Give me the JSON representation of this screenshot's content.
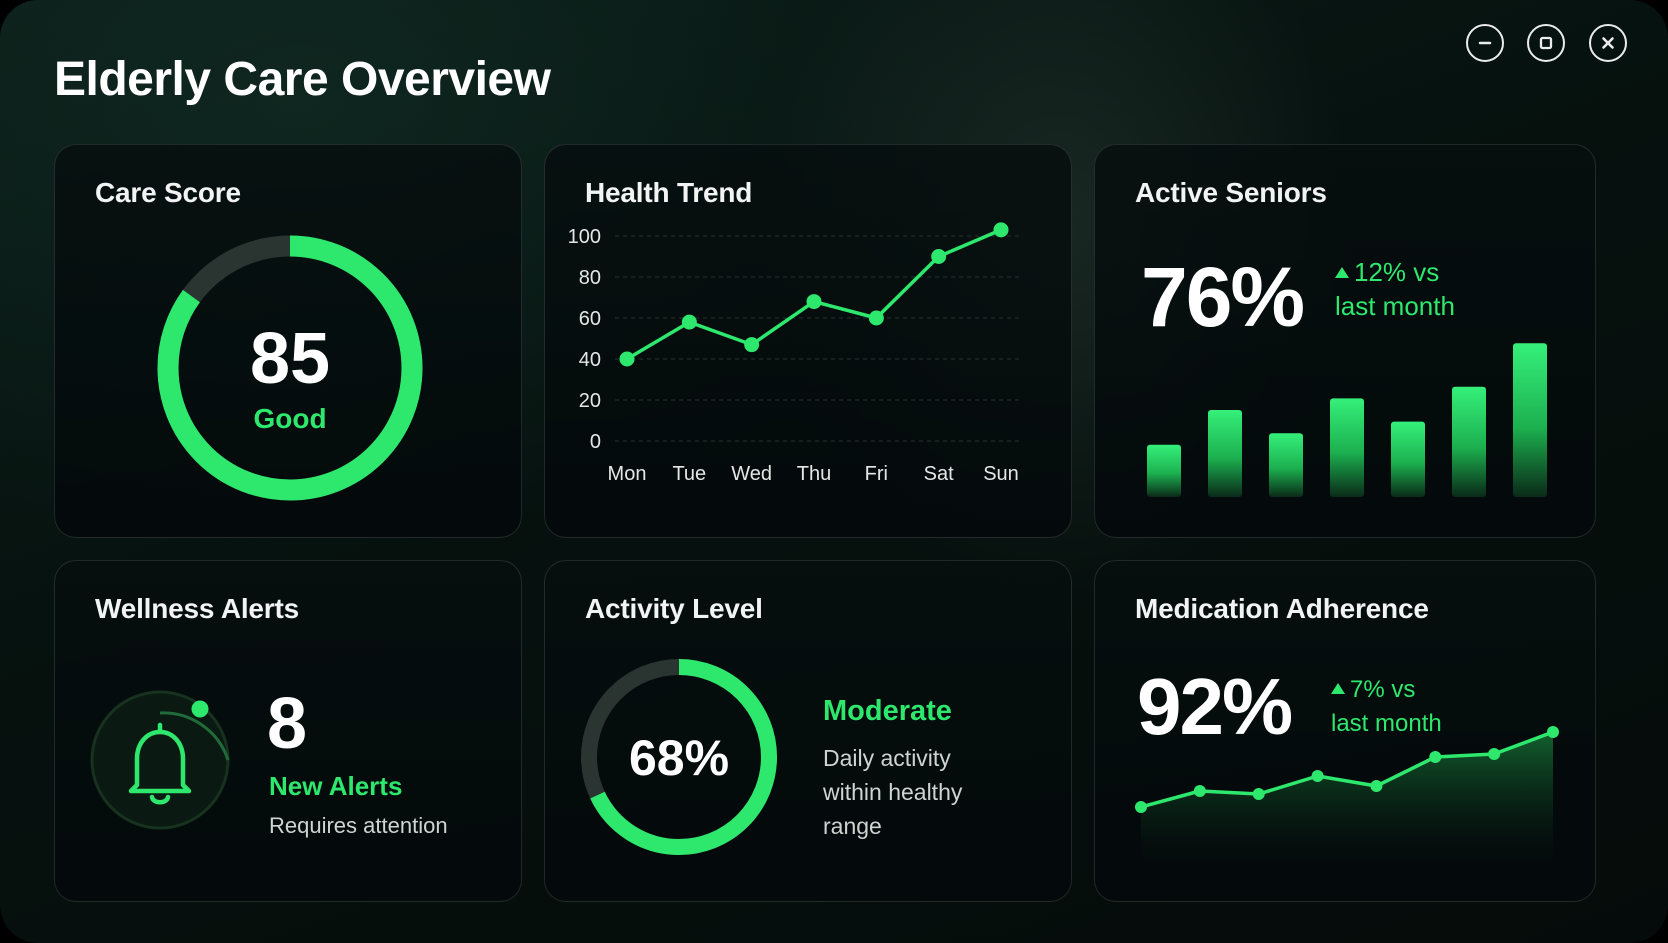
{
  "window": {
    "title": "Elderly Care Overview",
    "controls": [
      "minimize",
      "maximize",
      "close"
    ]
  },
  "colors": {
    "accent": "#2ee86e",
    "accent_dark": "#0f6b35",
    "text": "#ffffff",
    "muted": "#cfd4d2"
  },
  "care_score": {
    "title": "Care Score",
    "value": "85",
    "status": "Good",
    "fraction": 0.85
  },
  "health_trend": {
    "title": "Health Trend",
    "chart_data": {
      "type": "line",
      "categories": [
        "Mon",
        "Tue",
        "Wed",
        "Thu",
        "Fri",
        "Sat",
        "Sun"
      ],
      "values": [
        40,
        58,
        47,
        68,
        60,
        90,
        103
      ],
      "ylim": [
        0,
        100
      ],
      "yticks": [
        "0",
        "20",
        "40",
        "60",
        "80",
        "100"
      ],
      "grid": true
    }
  },
  "active_seniors": {
    "title": "Active Seniors",
    "value": "76%",
    "delta_line1": "12% vs",
    "delta_line2": "last month",
    "chart_data": {
      "type": "bar",
      "values": [
        18,
        30,
        22,
        34,
        26,
        38,
        53
      ]
    }
  },
  "wellness_alerts": {
    "title": "Wellness Alerts",
    "count": "8",
    "label": "New Alerts",
    "sublabel": "Requires attention"
  },
  "activity_level": {
    "title": "Activity Level",
    "value": "68%",
    "fraction": 0.68,
    "status": "Moderate",
    "desc_line1": "Daily activity",
    "desc_line2": "within healthy",
    "desc_line3": "range"
  },
  "medication_adherence": {
    "title": "Medication Adherence",
    "value": "92%",
    "delta_line1": "7% vs",
    "delta_line2": "last month",
    "chart_data": {
      "type": "area",
      "values": [
        40,
        56,
        53,
        71,
        61,
        90,
        93,
        115
      ]
    }
  }
}
